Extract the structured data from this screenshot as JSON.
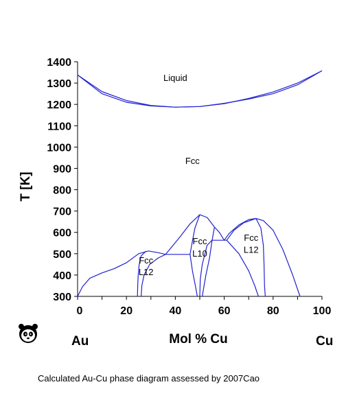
{
  "chart_data": {
    "type": "line",
    "title": "",
    "xlabel": "Mol % Cu",
    "ylabel": "T [K]",
    "xlim": [
      0,
      100
    ],
    "ylim": [
      300,
      1400
    ],
    "x_ticks": [
      0,
      20,
      40,
      60,
      80,
      100
    ],
    "y_ticks": [
      300,
      400,
      500,
      600,
      700,
      800,
      900,
      1000,
      1100,
      1200,
      1300,
      1400
    ],
    "line_color": "#2020d0",
    "phase_labels": [
      {
        "id": "liquid",
        "text": "Liquid",
        "x": 40,
        "y": 1310
      },
      {
        "id": "fcc",
        "text": "Fcc",
        "x": 47,
        "y": 920
      },
      {
        "id": "fcc-left",
        "text": "Fcc",
        "x": 28,
        "y": 455
      },
      {
        "id": "l12-left",
        "text": "L12",
        "x": 28,
        "y": 400
      },
      {
        "id": "fcc-mid",
        "text": "Fcc",
        "x": 50,
        "y": 545
      },
      {
        "id": "l10",
        "text": "L10",
        "x": 50,
        "y": 487
      },
      {
        "id": "fcc-right",
        "text": "Fcc",
        "x": 71,
        "y": 560
      },
      {
        "id": "l12-right",
        "text": "L12",
        "x": 71,
        "y": 505
      }
    ],
    "series": [
      {
        "id": "liquidus",
        "points": [
          [
            0,
            1338
          ],
          [
            10,
            1260
          ],
          [
            20,
            1218
          ],
          [
            30,
            1195
          ],
          [
            40,
            1187
          ],
          [
            50,
            1190
          ],
          [
            60,
            1203
          ],
          [
            70,
            1228
          ],
          [
            80,
            1258
          ],
          [
            90,
            1300
          ],
          [
            100,
            1358
          ]
        ]
      },
      {
        "id": "solidus",
        "points": [
          [
            0,
            1338
          ],
          [
            10,
            1250
          ],
          [
            20,
            1210
          ],
          [
            30,
            1193
          ],
          [
            40,
            1187
          ],
          [
            50,
            1190
          ],
          [
            60,
            1205
          ],
          [
            70,
            1225
          ],
          [
            80,
            1250
          ],
          [
            90,
            1292
          ],
          [
            100,
            1358
          ]
        ]
      },
      {
        "id": "l12-au3cu-outer",
        "points": [
          [
            0,
            300
          ],
          [
            2,
            345
          ],
          [
            5,
            385
          ],
          [
            10,
            410
          ],
          [
            15,
            430
          ],
          [
            20,
            458
          ],
          [
            25,
            500
          ],
          [
            29,
            513
          ],
          [
            33,
            505
          ],
          [
            36,
            497
          ]
        ]
      },
      {
        "id": "l12-au3cu-left-inner",
        "points": [
          [
            24.5,
            300
          ],
          [
            24.6,
            350
          ],
          [
            24.8,
            400
          ],
          [
            25.2,
            450
          ],
          [
            26,
            490
          ],
          [
            28,
            512
          ]
        ]
      },
      {
        "id": "l12-au3cu-right-inner",
        "points": [
          [
            26,
            300
          ],
          [
            26.3,
            350
          ],
          [
            27.2,
            400
          ],
          [
            29.5,
            450
          ],
          [
            33,
            480
          ],
          [
            36,
            497
          ]
        ]
      },
      {
        "id": "l10-tie",
        "points": [
          [
            36,
            497
          ],
          [
            46,
            497
          ]
        ]
      },
      {
        "id": "l10-dome",
        "points": [
          [
            36,
            497
          ],
          [
            42,
            580
          ],
          [
            46,
            640
          ],
          [
            50,
            683
          ],
          [
            53,
            670
          ],
          [
            56,
            625
          ],
          [
            58,
            600
          ],
          [
            60,
            563
          ]
        ]
      },
      {
        "id": "l10-left-inner",
        "points": [
          [
            46,
            497
          ],
          [
            47,
            560
          ],
          [
            48,
            620
          ],
          [
            50,
            683
          ]
        ]
      },
      {
        "id": "l10-right-inner",
        "points": [
          [
            50,
            300
          ],
          [
            50.2,
            380
          ],
          [
            51,
            450
          ],
          [
            53,
            540
          ],
          [
            55,
            563
          ]
        ]
      },
      {
        "id": "l10-left-lower",
        "points": [
          [
            49,
            300
          ],
          [
            48.2,
            350
          ],
          [
            47,
            420
          ],
          [
            46,
            497
          ]
        ]
      },
      {
        "id": "l10-right-lower",
        "points": [
          [
            51,
            300
          ],
          [
            52.5,
            400
          ],
          [
            54,
            480
          ],
          [
            55,
            560
          ],
          [
            56,
            625
          ]
        ]
      },
      {
        "id": "l12-tie",
        "points": [
          [
            55,
            563
          ],
          [
            61,
            563
          ]
        ]
      },
      {
        "id": "l12-aucu3-dome",
        "points": [
          [
            60,
            563
          ],
          [
            62,
            595
          ],
          [
            66,
            635
          ],
          [
            70,
            660
          ],
          [
            73,
            665
          ],
          [
            76,
            655
          ],
          [
            80,
            610
          ],
          [
            84,
            520
          ],
          [
            88,
            400
          ],
          [
            91,
            300
          ]
        ]
      },
      {
        "id": "l12-aucu3-left-inner",
        "points": [
          [
            61,
            563
          ],
          [
            64,
            610
          ],
          [
            68,
            645
          ],
          [
            73,
            665
          ]
        ]
      },
      {
        "id": "l12-aucu3-left-lower",
        "points": [
          [
            61,
            563
          ],
          [
            66,
            500
          ],
          [
            70,
            420
          ],
          [
            72.5,
            350
          ],
          [
            74,
            300
          ]
        ]
      },
      {
        "id": "l12-aucu3-right-inner",
        "points": [
          [
            73,
            665
          ],
          [
            75,
            620
          ],
          [
            76,
            540
          ],
          [
            76.3,
            450
          ],
          [
            76.5,
            350
          ],
          [
            76.8,
            300
          ]
        ]
      }
    ]
  },
  "element_labels": {
    "left": "Au",
    "right": "Cu"
  },
  "caption": "Calculated Au-Cu phase diagram assessed by 2007Cao"
}
